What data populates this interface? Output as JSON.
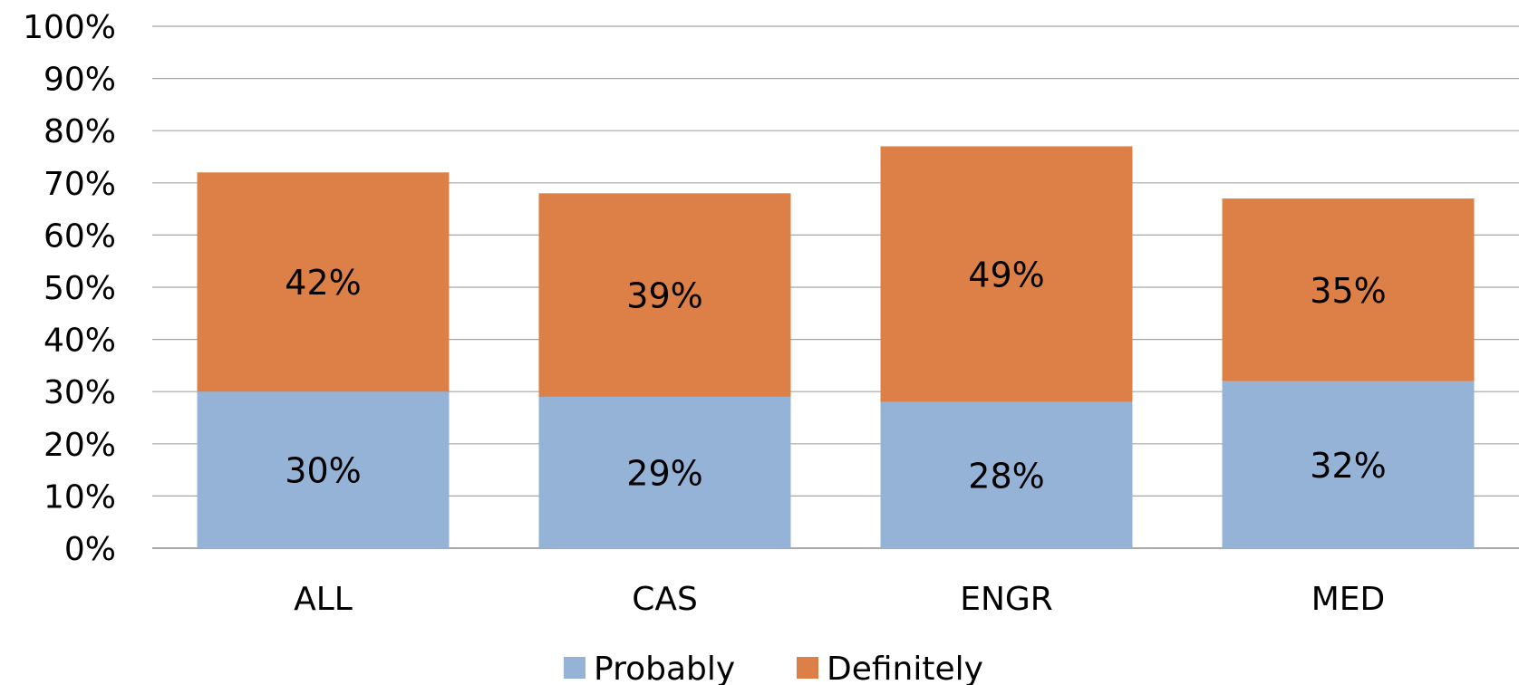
{
  "chart_data": {
    "type": "bar",
    "stacked": true,
    "categories": [
      "ALL",
      "CAS",
      "ENGR",
      "MED"
    ],
    "series": [
      {
        "name": "Probably",
        "values": [
          30,
          29,
          28,
          32
        ],
        "labels": [
          "30%",
          "29%",
          "28%",
          "32%"
        ],
        "color": "#95b3d7"
      },
      {
        "name": "Definitely",
        "values": [
          42,
          39,
          49,
          35
        ],
        "labels": [
          "42%",
          "39%",
          "49%",
          "35%"
        ],
        "color": "#dd8047"
      }
    ],
    "ylim": [
      0,
      100
    ],
    "yticks": [
      "0%",
      "10%",
      "20%",
      "30%",
      "40%",
      "50%",
      "60%",
      "70%",
      "80%",
      "90%",
      "100%"
    ],
    "grid": true,
    "legend_position": "bottom"
  }
}
